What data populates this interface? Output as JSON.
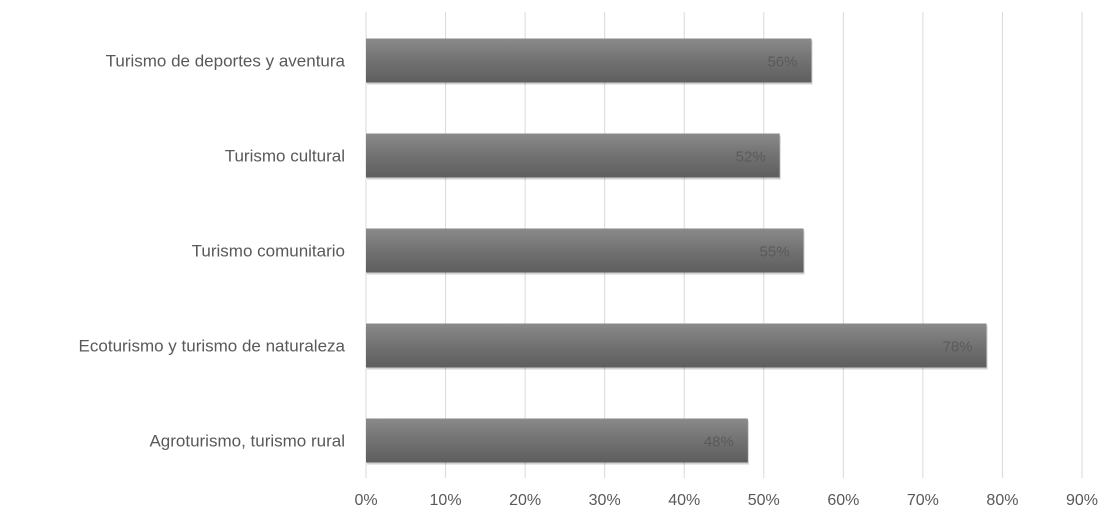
{
  "chart_data": {
    "type": "bar",
    "orientation": "horizontal",
    "categories": [
      "Turismo de deportes y aventura",
      "Turismo cultural",
      "Turismo comunitario",
      "Ecoturismo y turismo de naturaleza",
      "Agroturismo, turismo rural"
    ],
    "values": [
      56,
      52,
      55,
      78,
      48
    ],
    "data_labels": [
      "56%",
      "52%",
      "55%",
      "78%",
      "48%"
    ],
    "xlim": [
      0,
      90
    ],
    "x_ticks": [
      0,
      10,
      20,
      30,
      40,
      50,
      60,
      70,
      80,
      90
    ],
    "x_tick_labels": [
      "0%",
      "10%",
      "20%",
      "30%",
      "40%",
      "50%",
      "60%",
      "70%",
      "80%",
      "90%"
    ],
    "grid": "vertical",
    "legend": "none",
    "title": "",
    "xlabel": "",
    "ylabel": "",
    "colors": {
      "bar": "#747474",
      "bar_top": "#8a8a8a",
      "bar_bottom": "#5e5e5e",
      "grid": "#d9d9d9",
      "text": "#595959"
    }
  }
}
